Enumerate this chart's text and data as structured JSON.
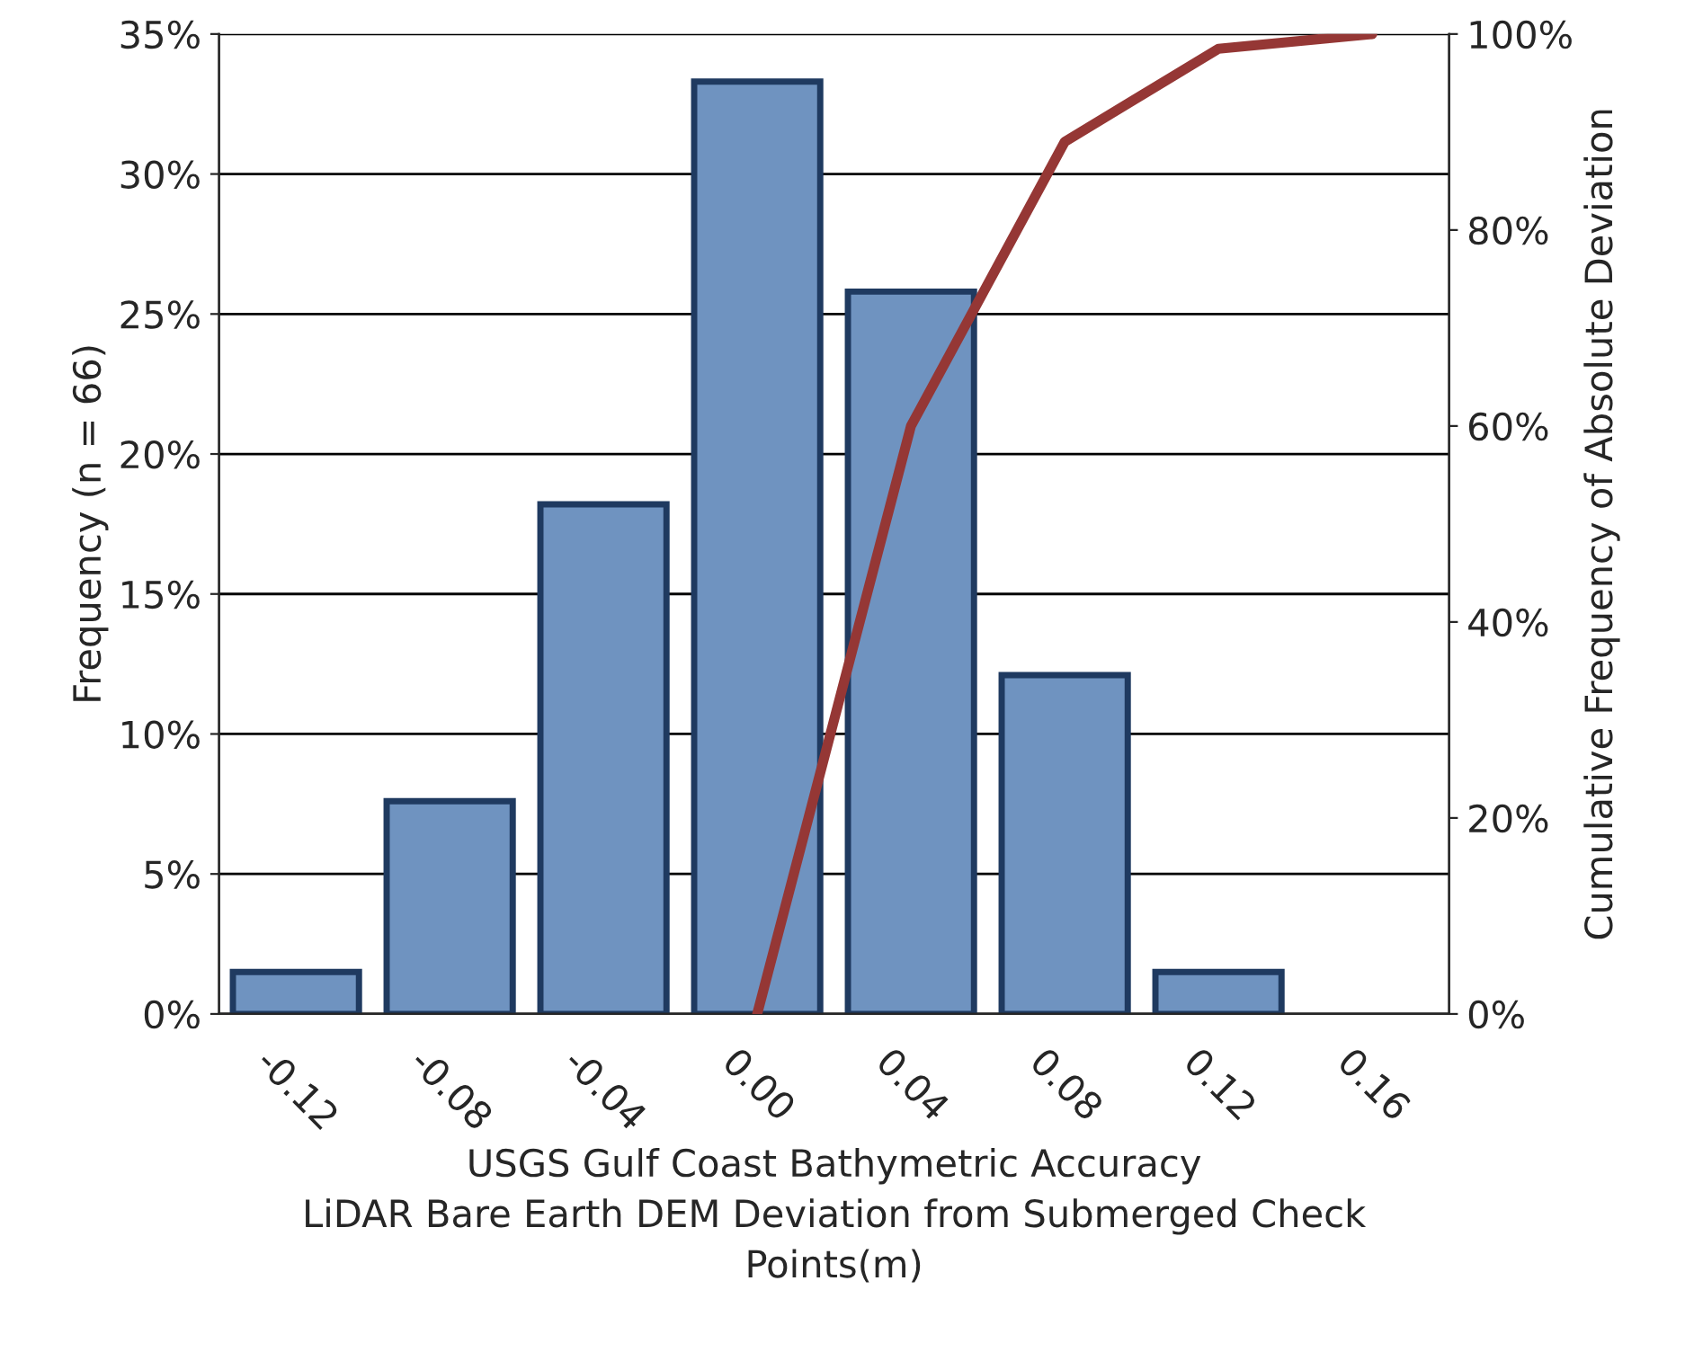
{
  "chart_data": {
    "type": "bar",
    "xlabel": "USGS Gulf Coast Bathymetric Accuracy\nLiDAR Bare Earth DEM Deviation from Submerged Check\nPoints(m)",
    "ylabel": "Frequency (n = 66)",
    "y2label": "Cumulative Frequency of Absolute Deviation",
    "categories": [
      "-0.12",
      "-0.08",
      "-0.04",
      "0.00",
      "0.04",
      "0.08",
      "0.12",
      "0.16"
    ],
    "series": [
      {
        "color": "#6f93c0",
        "values": [
          1.5,
          7.6,
          18.2,
          33.3,
          25.8,
          12.1,
          1.5,
          null
        ]
      },
      {
        "type": "line",
        "axis": "y2",
        "color": "#953735",
        "values": [
          null,
          null,
          null,
          0,
          60,
          89,
          98.5,
          100
        ]
      }
    ],
    "ylim": [
      0,
      35
    ],
    "yticks": [
      {
        "value": 0,
        "label": "0%"
      },
      {
        "value": 5,
        "label": "5%"
      },
      {
        "value": 10,
        "label": "10%"
      },
      {
        "value": 15,
        "label": "15%"
      },
      {
        "value": 20,
        "label": "20%"
      },
      {
        "value": 25,
        "label": "25%"
      },
      {
        "value": 30,
        "label": "30%"
      },
      {
        "value": 35,
        "label": "35%"
      }
    ],
    "y2lim": [
      0,
      100
    ],
    "y2ticks": [
      {
        "value": 0,
        "label": "0%"
      },
      {
        "value": 20,
        "label": "20%"
      },
      {
        "value": 40,
        "label": "40%"
      },
      {
        "value": 60,
        "label": "60%"
      },
      {
        "value": 80,
        "label": "80%"
      },
      {
        "value": 100,
        "label": "100%"
      }
    ],
    "grid": "y",
    "line_style": "solid",
    "marker": "none"
  }
}
